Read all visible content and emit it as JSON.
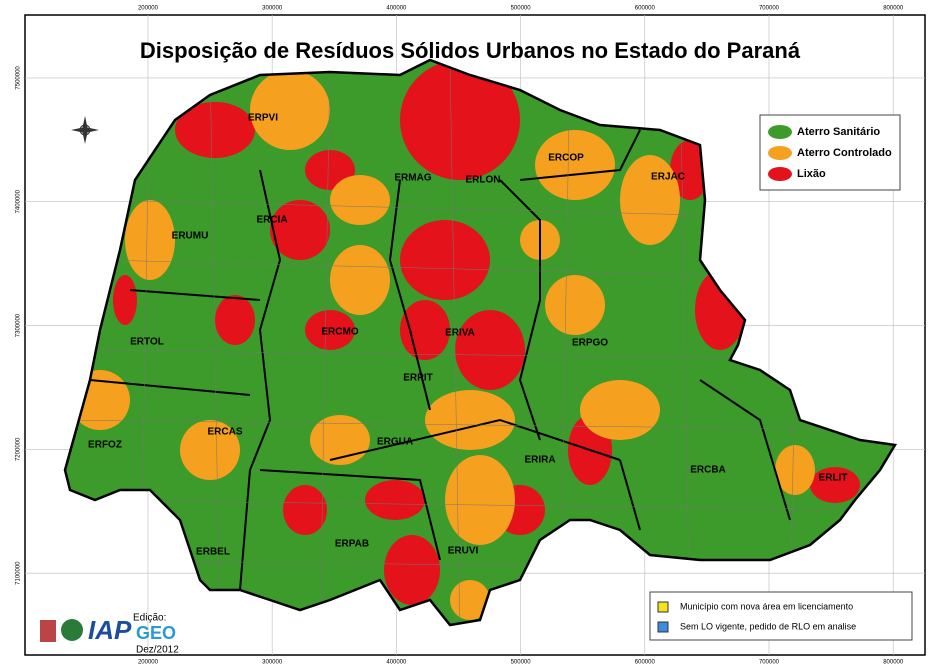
{
  "title": "Disposição de Resíduos Sólidos Urbanos no Estado do Paraná",
  "axes": {
    "xlim": [
      101000,
      825600
    ],
    "ylim": [
      7033900,
      7550800
    ],
    "xticks": [
      200000,
      300000,
      400000,
      500000,
      600000,
      700000,
      800000
    ],
    "yticks": [
      7500000,
      7400000,
      7300000,
      7200000,
      7100000
    ]
  },
  "regions": [
    "ERPVI",
    "ERMAG",
    "ERLON",
    "ERCOP",
    "ERJAC",
    "ERCIA",
    "ERUMU",
    "ERTOL",
    "ERCMO",
    "ERIVA",
    "ERPGO",
    "ERPIT",
    "ERFOZ",
    "ERCAS",
    "ERGUA",
    "ERIRA",
    "ERCBA",
    "ERLIT",
    "ERBEL",
    "ERPAB",
    "ERUVI"
  ],
  "legend": [
    {
      "name": "Aterro Sanitário",
      "color": "#3c9b2a"
    },
    {
      "name": "Aterro Controlado",
      "color": "#f5a01e"
    },
    {
      "name": "Lixão",
      "color": "#e3121b"
    }
  ],
  "notes": [
    {
      "text": "Município com nova área em licenciamento",
      "color": "#f2e31a"
    },
    {
      "text": "Sem LO vigente, pedido de RLO em analise",
      "color": "#3b8de0"
    }
  ],
  "logos": {
    "iap": "IAP",
    "edition": "Edição:",
    "geo": "GEO",
    "date": "Dez/2012"
  }
}
